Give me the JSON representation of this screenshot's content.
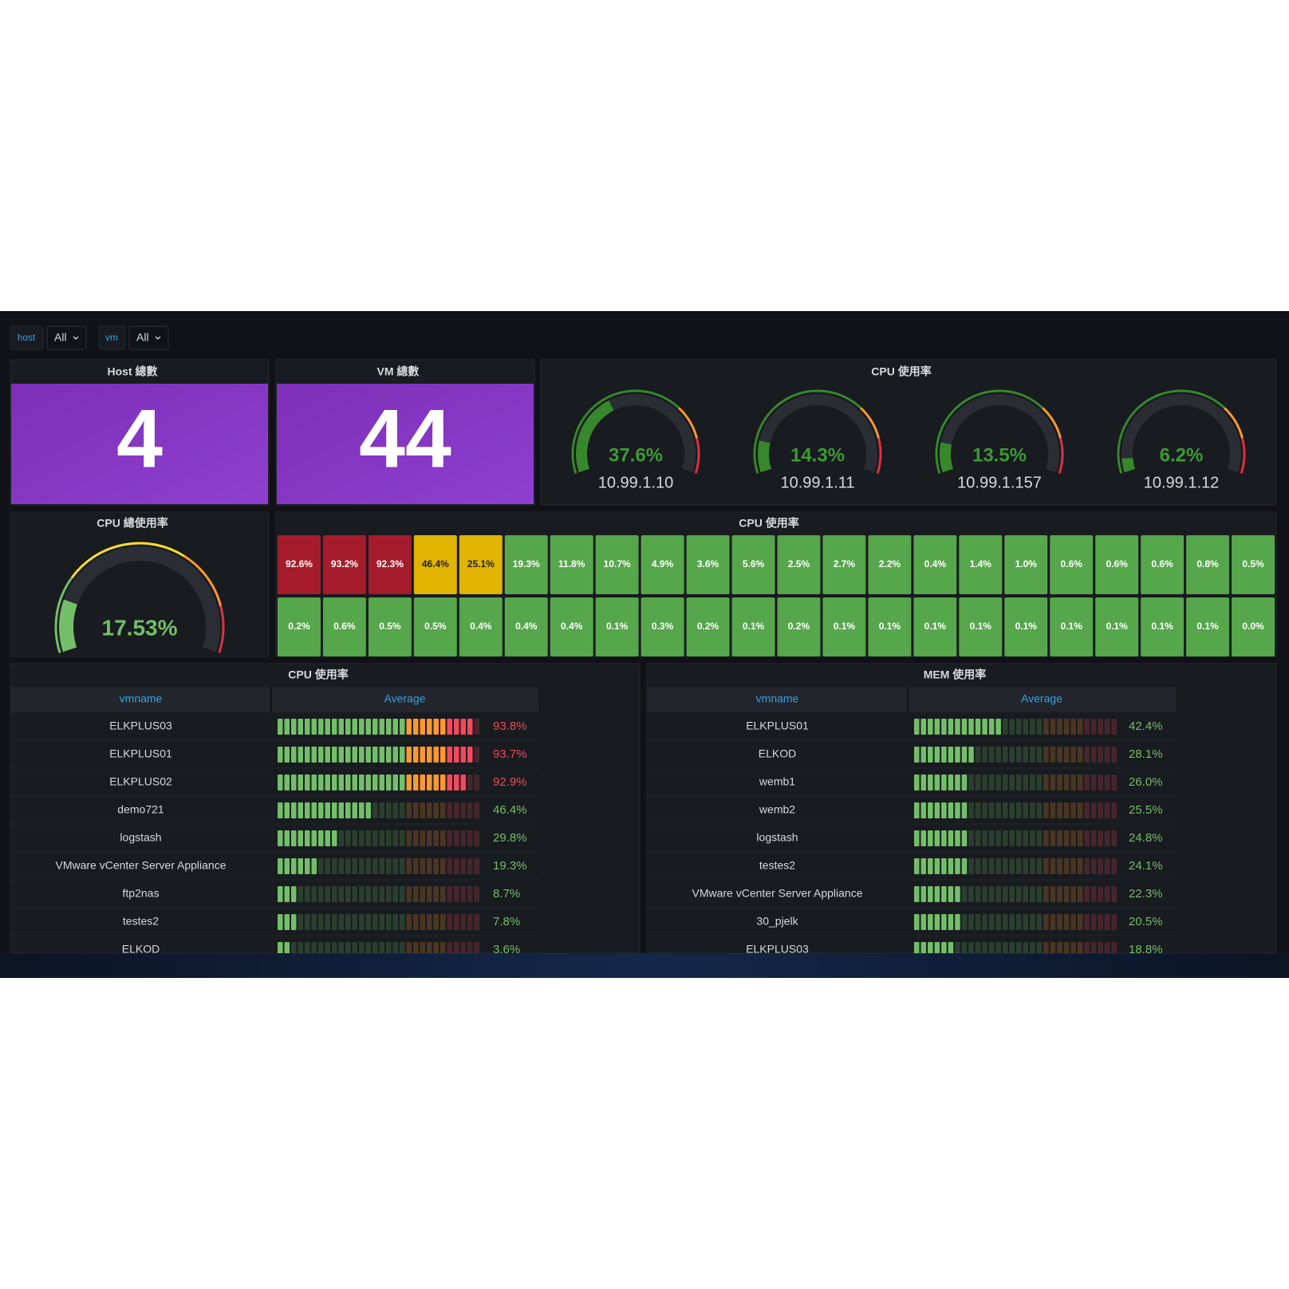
{
  "variables": [
    {
      "name": "host",
      "value": "All"
    },
    {
      "name": "vm",
      "value": "All"
    }
  ],
  "host_count": {
    "title": "Host 總數",
    "value": 4
  },
  "vm_count": {
    "title": "VM 總數",
    "value": 44
  },
  "cpu_gauges": {
    "title": "CPU 使用率",
    "range": [
      0,
      100
    ],
    "thresholds": [
      {
        "value": 0,
        "color": "#37872d"
      },
      {
        "value": 70,
        "color": "#ff9830"
      },
      {
        "value": 85,
        "color": "#e02f44"
      }
    ],
    "gauges": [
      {
        "value": 37.6,
        "label": "37.6%",
        "host": "10.99.1.10"
      },
      {
        "value": 14.3,
        "label": "14.3%",
        "host": "10.99.1.11"
      },
      {
        "value": 13.5,
        "label": "13.5%",
        "host": "10.99.1.157"
      },
      {
        "value": 6.2,
        "label": "6.2%",
        "host": "10.99.1.12"
      }
    ]
  },
  "cpu_total": {
    "title": "CPU 總使用率",
    "range": [
      0,
      100
    ],
    "value": 17.53,
    "label": "17.53%",
    "thresholds": [
      {
        "value": 0,
        "color": "#73bf69"
      },
      {
        "value": 25,
        "color": "#fade2a"
      },
      {
        "value": 65,
        "color": "#ff9830"
      },
      {
        "value": 85,
        "color": "#e02f44"
      }
    ]
  },
  "cpu_grid": {
    "title": "CPU 使用率",
    "thresholds": [
      {
        "value": 0,
        "color": "#56a64b",
        "text_color": "#ffffff"
      },
      {
        "value": 20,
        "color": "#e0b400",
        "text_color": "#222222"
      },
      {
        "value": 80,
        "color": "#a51d2d",
        "text_color": "#ffffff"
      }
    ],
    "cells": [
      {
        "value": 92.6,
        "label": "92.6%"
      },
      {
        "value": 93.2,
        "label": "93.2%"
      },
      {
        "value": 92.3,
        "label": "92.3%"
      },
      {
        "value": 46.4,
        "label": "46.4%"
      },
      {
        "value": 25.1,
        "label": "25.1%"
      },
      {
        "value": 19.3,
        "label": "19.3%"
      },
      {
        "value": 11.8,
        "label": "11.8%"
      },
      {
        "value": 10.7,
        "label": "10.7%"
      },
      {
        "value": 4.9,
        "label": "4.9%"
      },
      {
        "value": 3.6,
        "label": "3.6%"
      },
      {
        "value": 5.6,
        "label": "5.6%"
      },
      {
        "value": 2.5,
        "label": "2.5%"
      },
      {
        "value": 2.7,
        "label": "2.7%"
      },
      {
        "value": 2.2,
        "label": "2.2%"
      },
      {
        "value": 0.4,
        "label": "0.4%"
      },
      {
        "value": 1.4,
        "label": "1.4%"
      },
      {
        "value": 1.0,
        "label": "1.0%"
      },
      {
        "value": 0.6,
        "label": "0.6%"
      },
      {
        "value": 0.6,
        "label": "0.6%"
      },
      {
        "value": 0.6,
        "label": "0.6%"
      },
      {
        "value": 0.8,
        "label": "0.8%"
      },
      {
        "value": 0.5,
        "label": "0.5%"
      },
      {
        "value": 0.2,
        "label": "0.2%"
      },
      {
        "value": 0.6,
        "label": "0.6%"
      },
      {
        "value": 0.5,
        "label": "0.5%"
      },
      {
        "value": 0.5,
        "label": "0.5%"
      },
      {
        "value": 0.4,
        "label": "0.4%"
      },
      {
        "value": 0.4,
        "label": "0.4%"
      },
      {
        "value": 0.4,
        "label": "0.4%"
      },
      {
        "value": 0.1,
        "label": "0.1%"
      },
      {
        "value": 0.3,
        "label": "0.3%"
      },
      {
        "value": 0.2,
        "label": "0.2%"
      },
      {
        "value": 0.1,
        "label": "0.1%"
      },
      {
        "value": 0.2,
        "label": "0.2%"
      },
      {
        "value": 0.1,
        "label": "0.1%"
      },
      {
        "value": 0.1,
        "label": "0.1%"
      },
      {
        "value": 0.1,
        "label": "0.1%"
      },
      {
        "value": 0.1,
        "label": "0.1%"
      },
      {
        "value": 0.1,
        "label": "0.1%"
      },
      {
        "value": 0.1,
        "label": "0.1%"
      },
      {
        "value": 0.1,
        "label": "0.1%"
      },
      {
        "value": 0.1,
        "label": "0.1%"
      },
      {
        "value": 0.1,
        "label": "0.1%"
      },
      {
        "value": 0,
        "label": "0.0%"
      }
    ]
  },
  "cpu_table": {
    "title": "CPU 使用率",
    "columns": [
      "vmname",
      "Average"
    ],
    "range": [
      0,
      100
    ],
    "thresholds": [
      {
        "value": 0,
        "color": "#73bf69"
      },
      {
        "value": 62,
        "color": "#ff9830"
      },
      {
        "value": 85,
        "color": "#f2495c"
      }
    ],
    "rows": [
      {
        "vmname": "ELKPLUS03",
        "value": 93.8,
        "label": "93.8%"
      },
      {
        "vmname": "ELKPLUS01",
        "value": 93.7,
        "label": "93.7%"
      },
      {
        "vmname": "ELKPLUS02",
        "value": 92.9,
        "label": "92.9%"
      },
      {
        "vmname": "demo721",
        "value": 46.4,
        "label": "46.4%"
      },
      {
        "vmname": "logstash",
        "value": 29.8,
        "label": "29.8%"
      },
      {
        "vmname": "VMware vCenter Server Appliance",
        "value": 19.3,
        "label": "19.3%"
      },
      {
        "vmname": "ftp2nas",
        "value": 8.7,
        "label": "8.7%"
      },
      {
        "vmname": "testes2",
        "value": 7.8,
        "label": "7.8%"
      },
      {
        "vmname": "ELKOD",
        "value": 3.6,
        "label": "3.6%"
      }
    ]
  },
  "mem_table": {
    "title": "MEM 使用率",
    "columns": [
      "vmname",
      "Average"
    ],
    "range": [
      0,
      100
    ],
    "thresholds": [
      {
        "value": 0,
        "color": "#73bf69"
      },
      {
        "value": 62,
        "color": "#ff9830"
      },
      {
        "value": 85,
        "color": "#f2495c"
      }
    ],
    "rows": [
      {
        "vmname": "ELKPLUS01",
        "value": 42.4,
        "label": "42.4%"
      },
      {
        "vmname": "ELKOD",
        "value": 28.1,
        "label": "28.1%"
      },
      {
        "vmname": "wemb1",
        "value": 26.0,
        "label": "26.0%"
      },
      {
        "vmname": "wemb2",
        "value": 25.5,
        "label": "25.5%"
      },
      {
        "vmname": "logstash",
        "value": 24.8,
        "label": "24.8%"
      },
      {
        "vmname": "testes2",
        "value": 24.1,
        "label": "24.1%"
      },
      {
        "vmname": "VMware vCenter Server Appliance",
        "value": 22.3,
        "label": "22.3%"
      },
      {
        "vmname": "30_pjelk",
        "value": 20.5,
        "label": "20.5%"
      },
      {
        "vmname": "ELKPLUS03",
        "value": 18.8,
        "label": "18.8%"
      }
    ]
  }
}
